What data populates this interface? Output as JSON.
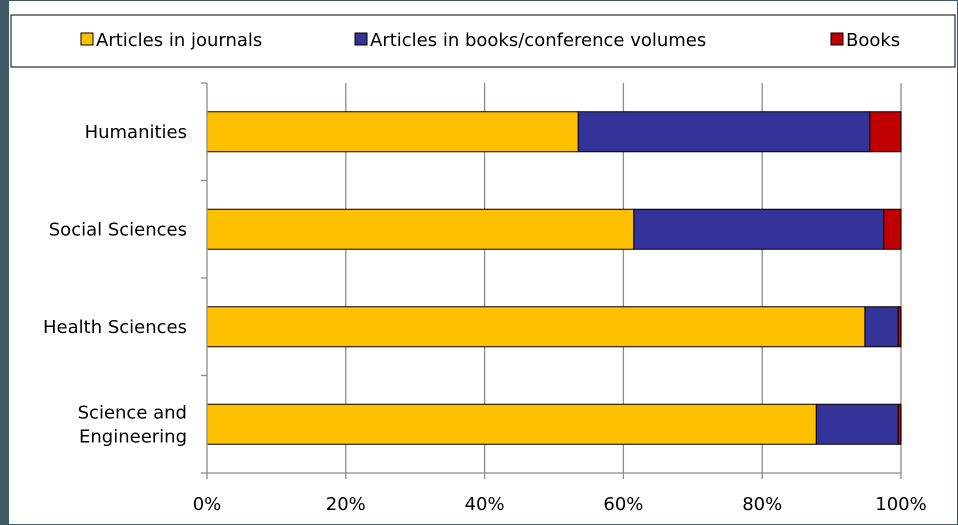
{
  "chart_data": {
    "type": "bar",
    "orientation": "horizontal",
    "stacked": true,
    "percent": true,
    "categories": [
      "Humanities",
      "Social Sciences",
      "Health Sciences",
      "Science and Engineering"
    ],
    "category_lines": [
      [
        "Humanities"
      ],
      [
        "Social Sciences"
      ],
      [
        "Health Sciences"
      ],
      [
        "Science and",
        "Engineering"
      ]
    ],
    "series": [
      {
        "name": "Articles in journals",
        "color": "#FFC000",
        "values": [
          53.5,
          61.5,
          94.8,
          87.8
        ]
      },
      {
        "name": "Articles in books/conference volumes",
        "color": "#333399",
        "values": [
          42.0,
          36.0,
          4.8,
          11.8
        ]
      },
      {
        "name": "Books",
        "color": "#C00000",
        "values": [
          4.5,
          2.5,
          0.4,
          0.4
        ]
      }
    ],
    "xlim": [
      0,
      100
    ],
    "xticks": [
      0,
      20,
      40,
      60,
      80,
      100
    ],
    "xtick_labels": [
      "0%",
      "20%",
      "40%",
      "60%",
      "80%",
      "100%"
    ],
    "grid": "vertical",
    "legend": "top"
  }
}
